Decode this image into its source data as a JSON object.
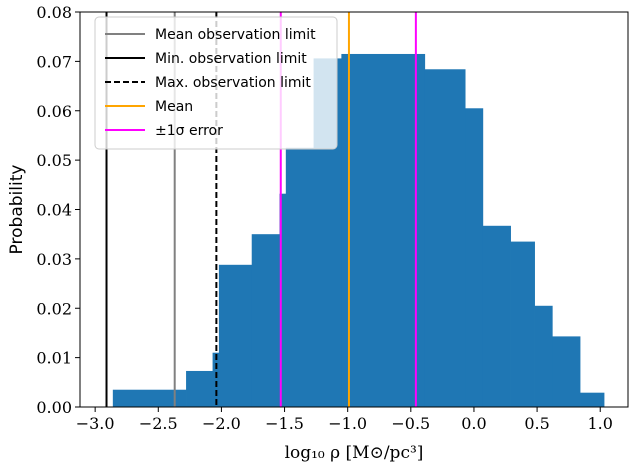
{
  "chart_data": {
    "type": "bar",
    "xlabel": "log₁₀ ρ [M⊙/pc³]",
    "ylabel": "Probability",
    "xlim": [
      -3.12,
      1.22
    ],
    "ylim": [
      0,
      0.08
    ],
    "xticks": [
      -3.0,
      -2.5,
      -2.0,
      -1.5,
      -1.0,
      -0.5,
      0.0,
      0.5,
      1.0
    ],
    "xtick_labels": [
      "−3.0",
      "−2.5",
      "−2.0",
      "−1.5",
      "−1.0",
      "−0.5",
      "0.0",
      "0.5",
      "1.0"
    ],
    "yticks": [
      0.0,
      0.01,
      0.02,
      0.03,
      0.04,
      0.05,
      0.06,
      0.07,
      0.08
    ],
    "ytick_labels": [
      "0.00",
      "0.01",
      "0.02",
      "0.03",
      "0.04",
      "0.05",
      "0.06",
      "0.07",
      "0.08"
    ],
    "grid": false,
    "bar_color": "#1f77b4",
    "bins": [
      {
        "x0": -2.86,
        "x1": -2.28,
        "y": 0.0035
      },
      {
        "x0": -2.28,
        "x1": -2.07,
        "y": 0.0073
      },
      {
        "x0": -2.07,
        "x1": -2.02,
        "y": 0.011
      },
      {
        "x0": -2.02,
        "x1": -1.76,
        "y": 0.0288
      },
      {
        "x0": -1.76,
        "x1": -1.54,
        "y": 0.035
      },
      {
        "x0": -1.54,
        "x1": -1.49,
        "y": 0.0432
      },
      {
        "x0": -1.49,
        "x1": -1.27,
        "y": 0.0525
      },
      {
        "x0": -1.27,
        "x1": -1.05,
        "y": 0.0706
      },
      {
        "x0": -1.05,
        "x1": -0.39,
        "y": 0.0715
      },
      {
        "x0": -0.39,
        "x1": -0.07,
        "y": 0.0684
      },
      {
        "x0": -0.07,
        "x1": 0.07,
        "y": 0.0605
      },
      {
        "x0": 0.07,
        "x1": 0.29,
        "y": 0.0367
      },
      {
        "x0": 0.29,
        "x1": 0.48,
        "y": 0.0335
      },
      {
        "x0": 0.48,
        "x1": 0.62,
        "y": 0.0205
      },
      {
        "x0": 0.62,
        "x1": 0.84,
        "y": 0.0143
      },
      {
        "x0": 0.84,
        "x1": 1.03,
        "y": 0.0029
      }
    ],
    "vlines": [
      {
        "name": "Mean observation limit",
        "x": -2.37,
        "color": "#808080",
        "dash": "solid"
      },
      {
        "name": "Min. observation limit",
        "x": -2.91,
        "color": "#000000",
        "dash": "solid"
      },
      {
        "name": "Max. observation limit",
        "x": -2.04,
        "color": "#000000",
        "dash": "dashed"
      },
      {
        "name": "Mean",
        "x": -0.99,
        "color": "#ffa500",
        "dash": "solid"
      },
      {
        "name": "±1σ error",
        "x": -1.53,
        "color": "#ff00ff",
        "dash": "solid"
      },
      {
        "name": "±1σ error",
        "x": -0.46,
        "color": "#ff00ff",
        "dash": "solid"
      }
    ],
    "legend": {
      "placement": "top-left",
      "entries": [
        {
          "label": "Mean observation limit",
          "color": "#808080",
          "dash": "solid"
        },
        {
          "label": "Min. observation limit",
          "color": "#000000",
          "dash": "solid"
        },
        {
          "label": "Max. observation limit",
          "color": "#000000",
          "dash": "dashed"
        },
        {
          "label": "Mean",
          "color": "#ffa500",
          "dash": "solid"
        },
        {
          "label": "±1σ error",
          "color": "#ff00ff",
          "dash": "solid"
        }
      ]
    }
  }
}
